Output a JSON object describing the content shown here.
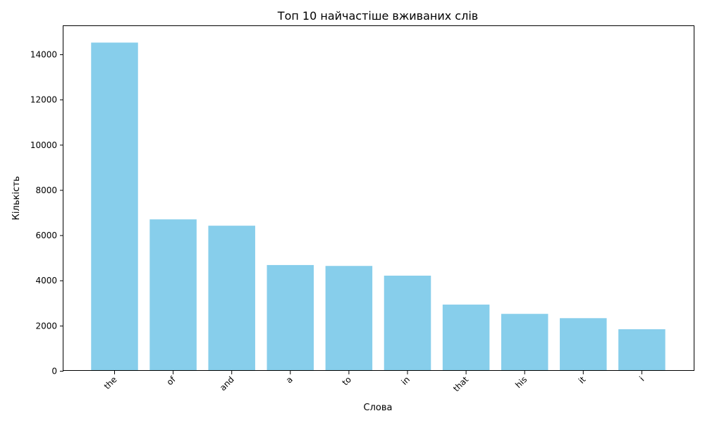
{
  "chart_data": {
    "type": "bar",
    "title": "Топ 10 найчастіше вживаних слів",
    "xlabel": "Слова",
    "ylabel": "Кількість",
    "categories": [
      "the",
      "of",
      "and",
      "a",
      "to",
      "in",
      "that",
      "his",
      "it",
      "i"
    ],
    "values": [
      14520,
      6700,
      6420,
      4680,
      4640,
      4210,
      2930,
      2520,
      2330,
      1840
    ],
    "ylim": [
      0,
      15250
    ],
    "yticks": [
      0,
      2000,
      4000,
      6000,
      8000,
      10000,
      12000,
      14000
    ],
    "grid": false,
    "bar_color": "#87ceeb",
    "x_tick_rotation": 45
  }
}
